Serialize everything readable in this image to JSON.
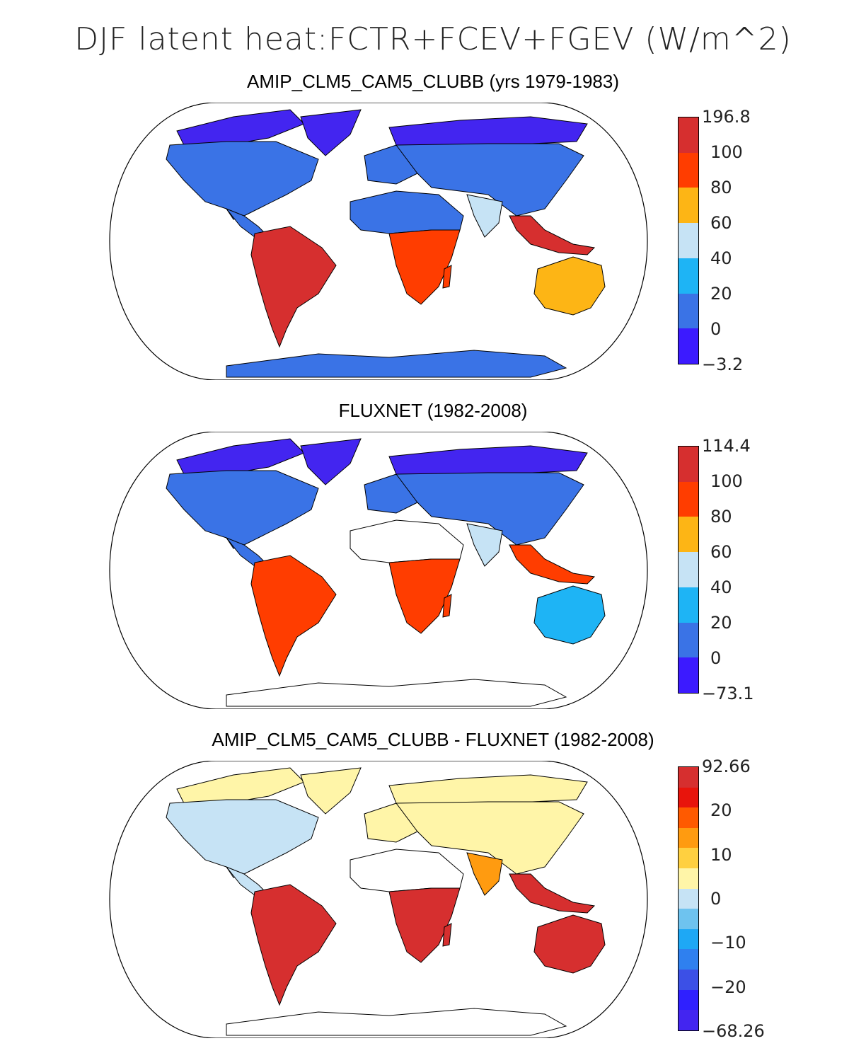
{
  "figure": {
    "title": "DJF latent heat:FCTR+FCEV+FGEV (W/m^2)"
  },
  "colors": {
    "ocean": "#ffffff",
    "coast": "#000000"
  },
  "panels": [
    {
      "title": "AMIP_CLM5_CAM5_CLUBB (yrs 1979-1983)",
      "colorbar": {
        "colors": [
          "#d62f2f",
          "#ff3d00",
          "#fdb515",
          "#c6e3f5",
          "#1eb4f5",
          "#3a73e6",
          "#3c1aff"
        ],
        "labels": [
          "196.8",
          "100",
          "80",
          "60",
          "40",
          "20",
          "0",
          "−3.2"
        ]
      },
      "regions": {
        "arctic": "#4325f0",
        "north_america": "#3a73e6",
        "south_america": "#d62f2f",
        "africa_north": "#3a73e6",
        "africa_south": "#ff3d00",
        "eurasia": "#3a73e6",
        "india": "#c6e3f5",
        "se_asia": "#d62f2f",
        "australia": "#fdb515",
        "antarctica": "#3a73e6"
      }
    },
    {
      "title": "FLUXNET (1982-2008)",
      "colorbar": {
        "colors": [
          "#d62f2f",
          "#ff3d00",
          "#fdb515",
          "#c6e3f5",
          "#1eb4f5",
          "#3a73e6",
          "#3c1aff"
        ],
        "labels": [
          "114.4",
          "100",
          "80",
          "60",
          "40",
          "20",
          "0",
          "−73.1"
        ]
      },
      "regions": {
        "arctic": "#4325f0",
        "north_america": "#3a73e6",
        "south_america": "#ff3d00",
        "africa_north": "#ffffff",
        "africa_south": "#ff3d00",
        "eurasia": "#3a73e6",
        "india": "#c6e3f5",
        "se_asia": "#ff3d00",
        "australia": "#1eb4f5",
        "antarctica": "#ffffff"
      }
    },
    {
      "title": "AMIP_CLM5_CAM5_CLUBB - FLUXNET (1982-2008)",
      "colorbar": {
        "colors": [
          "#d62f2f",
          "#e8140c",
          "#ff5a00",
          "#ff9b10",
          "#ffd040",
          "#fff5a8",
          "#c6e3f5",
          "#6ec3ef",
          "#1ea8f5",
          "#2f80ef",
          "#3c50e6",
          "#2f20ff",
          "#4325f0"
        ],
        "labels": [
          "92.66",
          "",
          "20",
          "",
          "10",
          "",
          "0",
          "",
          "−10",
          "",
          "−20",
          "",
          "−68.26"
        ]
      },
      "regions": {
        "arctic": "#fff5a8",
        "north_america": "#c6e3f5",
        "south_america": "#d62f2f",
        "africa_north": "#ffffff",
        "africa_south": "#d62f2f",
        "eurasia": "#fff5a8",
        "india": "#ff9b10",
        "se_asia": "#d62f2f",
        "australia": "#d62f2f",
        "antarctica": "#ffffff"
      }
    }
  ]
}
